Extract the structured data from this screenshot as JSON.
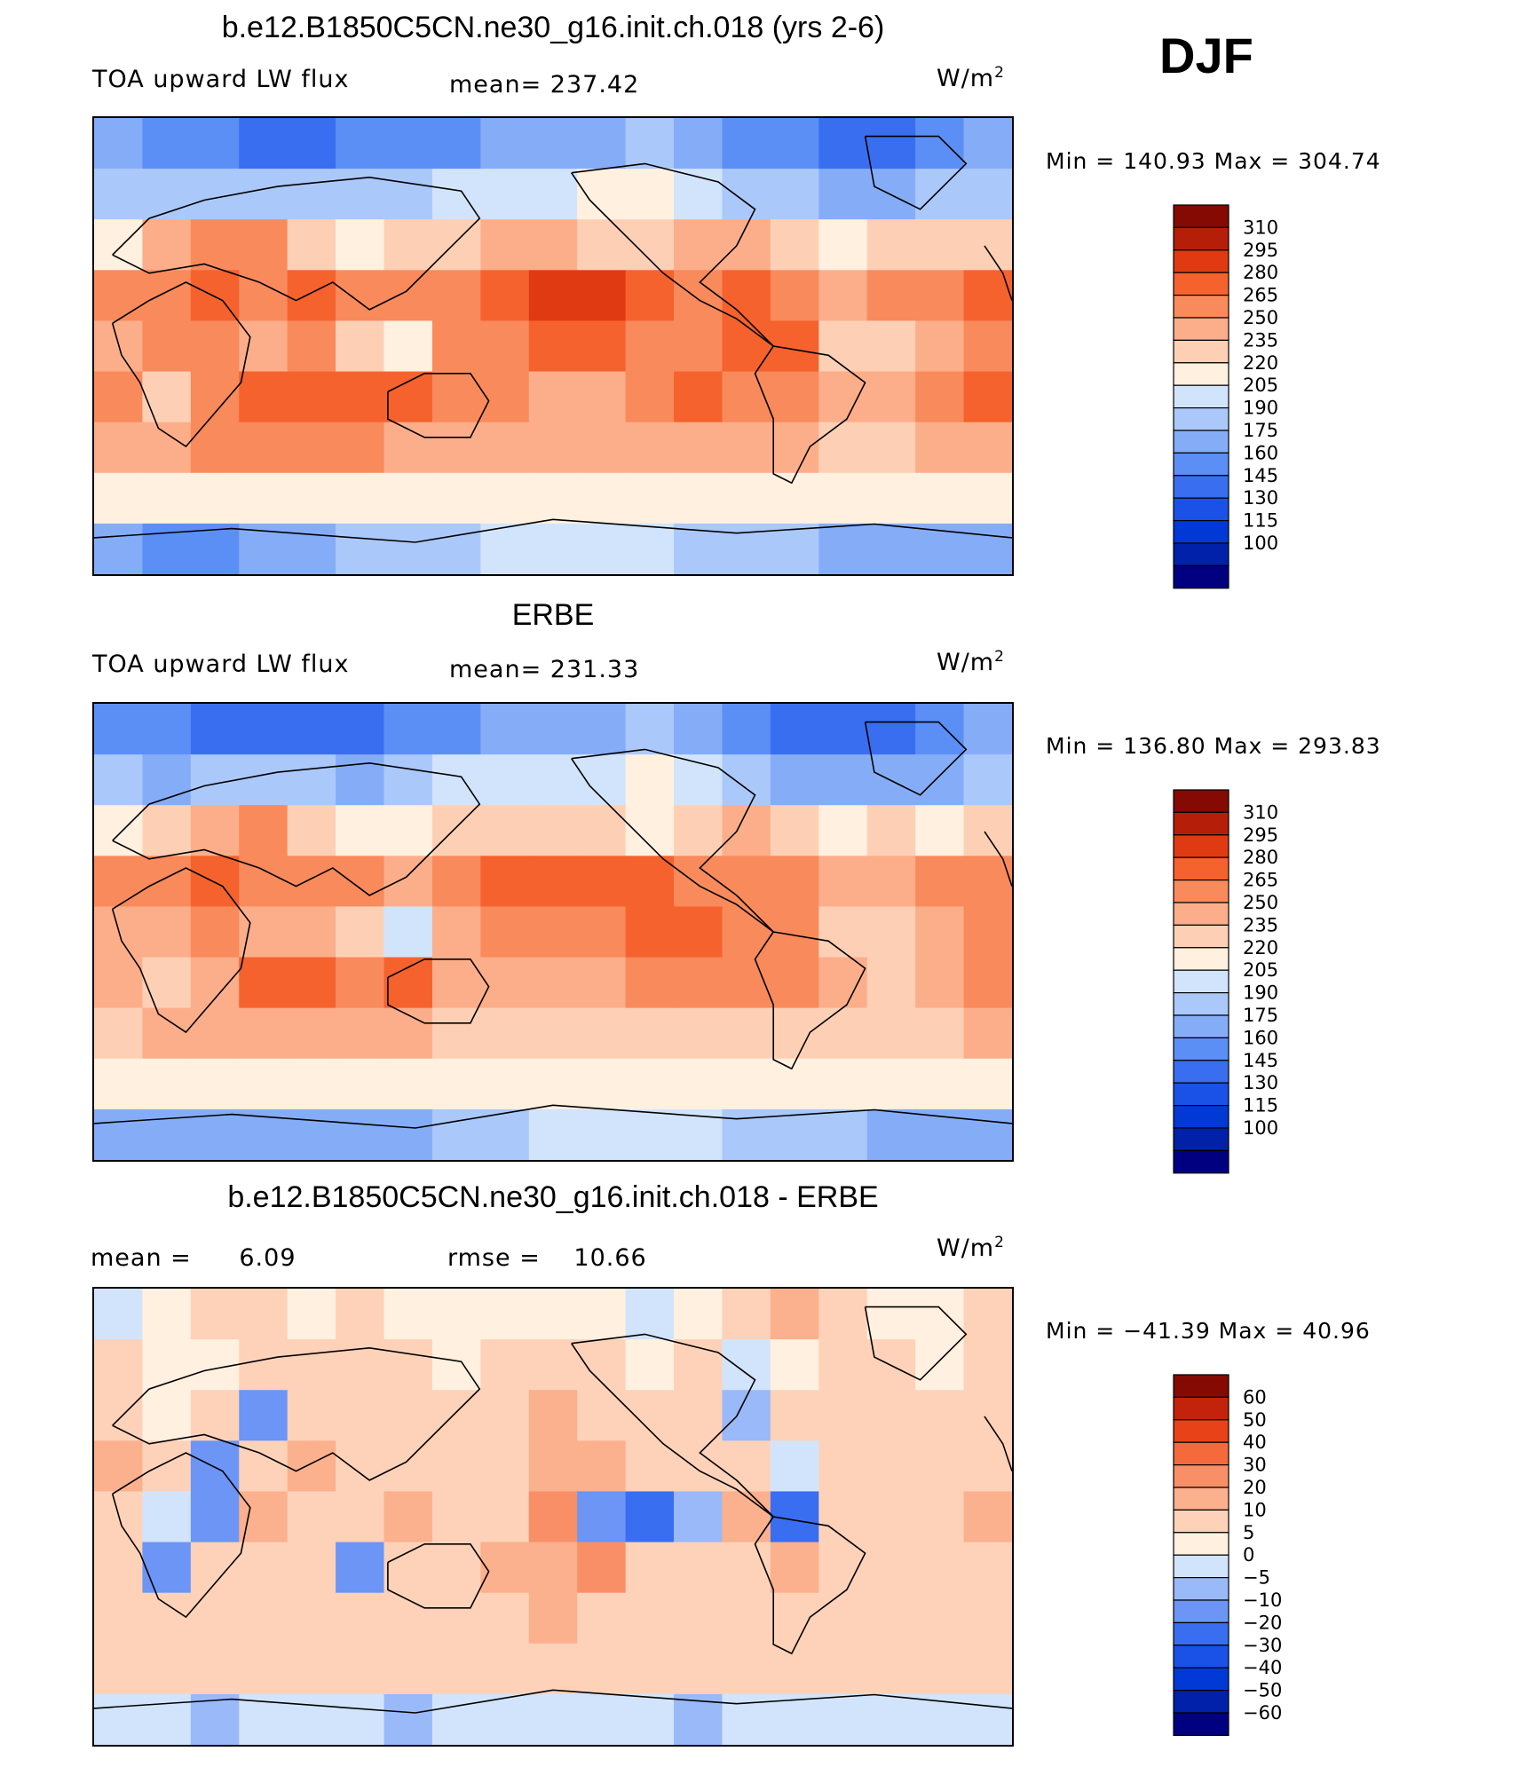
{
  "season": "DJF",
  "colors": {
    "abs_scale": [
      "#000080",
      "#0021a8",
      "#0039d6",
      "#1a52e8",
      "#3a6ef0",
      "#5c8ff5",
      "#85adf7",
      "#abc8fa",
      "#d2e4fc",
      "#fff0e0",
      "#fdd0b6",
      "#fcae8a",
      "#f98a5c",
      "#f5622e",
      "#e03a12",
      "#b51e08",
      "#850a04"
    ],
    "diff_scale": [
      "#000080",
      "#0021a8",
      "#0039d6",
      "#1a52e8",
      "#3a6ef0",
      "#6c95f5",
      "#9ab9f8",
      "#d2e4fc",
      "#fff0e0",
      "#fdd2b9",
      "#fbb08e",
      "#f98f66",
      "#f56a3c",
      "#e84218",
      "#c2230a",
      "#850a04"
    ],
    "coast": "#000000"
  },
  "panels": [
    {
      "id": "model",
      "title": "b.e12.B1850C5CN.ne30_g16.init.ch.018 (yrs 2-6)",
      "left_label": "TOA upward LW flux",
      "mid_label": "mean=",
      "mid_value": "237.42",
      "units": "W/m",
      "units_sup": "2",
      "minmax": "Min  =  140.93  Max  =  304.74"
    },
    {
      "id": "obs",
      "title": "ERBE",
      "left_label": "TOA upward LW flux",
      "mid_label": "mean=",
      "mid_value": "231.33",
      "units": "W/m",
      "units_sup": "2",
      "minmax": "Min  =  136.80  Max  =  293.83"
    },
    {
      "id": "diff",
      "title": "b.e12.B1850C5CN.ne30_g16.init.ch.018 - ERBE",
      "left_label": "mean =",
      "left_value": "6.09",
      "mid_label": "rmse =",
      "mid_value": "10.66",
      "units": "W/m",
      "units_sup": "2",
      "minmax": "Min  =  −41.39  Max  =    40.96"
    }
  ],
  "chart_data": [
    {
      "type": "heatmap",
      "title": "b.e12.B1850C5CN.ne30_g16.init.ch.018 (yrs 2-6)",
      "subtitle": "TOA upward LW flux",
      "units": "W/m2",
      "mean": 237.42,
      "min": 140.93,
      "max": 304.74,
      "colorbar_levels": [
        "310",
        "295",
        "280",
        "265",
        "250",
        "235",
        "220",
        "205",
        "190",
        "175",
        "160",
        "145",
        "130",
        "115",
        "100"
      ],
      "field": [
        [
          175,
          160,
          160,
          155,
          150,
          160,
          165,
          170,
          175,
          180,
          185,
          190,
          180,
          170,
          160,
          150,
          150,
          165,
          180
        ],
        [
          195,
          190,
          190,
          200,
          195,
          190,
          200,
          210,
          215,
          210,
          220,
          225,
          215,
          200,
          190,
          180,
          185,
          190,
          200
        ],
        [
          230,
          250,
          265,
          270,
          240,
          230,
          235,
          245,
          250,
          250,
          245,
          235,
          250,
          255,
          245,
          225,
          240,
          235,
          240
        ],
        [
          270,
          275,
          290,
          275,
          280,
          270,
          265,
          275,
          285,
          300,
          295,
          285,
          270,
          280,
          275,
          260,
          265,
          270,
          280
        ],
        [
          255,
          265,
          270,
          255,
          265,
          245,
          230,
          265,
          275,
          280,
          280,
          275,
          270,
          280,
          285,
          245,
          240,
          260,
          275
        ],
        [
          265,
          245,
          265,
          285,
          290,
          280,
          290,
          270,
          265,
          260,
          255,
          270,
          280,
          275,
          270,
          255,
          250,
          265,
          280
        ],
        [
          250,
          255,
          265,
          270,
          265,
          265,
          260,
          255,
          250,
          250,
          250,
          250,
          250,
          250,
          250,
          245,
          245,
          250,
          255
        ],
        [
          225,
          225,
          225,
          225,
          225,
          225,
          225,
          225,
          225,
          225,
          225,
          225,
          225,
          225,
          225,
          225,
          225,
          225,
          225
        ],
        [
          175,
          170,
          170,
          180,
          185,
          190,
          195,
          200,
          205,
          210,
          210,
          205,
          200,
          195,
          190,
          185,
          180,
          175,
          175
        ]
      ]
    },
    {
      "type": "heatmap",
      "title": "ERBE",
      "subtitle": "TOA upward LW flux",
      "units": "W/m2",
      "mean": 231.33,
      "min": 136.8,
      "max": 293.83,
      "colorbar_levels": [
        "310",
        "295",
        "280",
        "265",
        "250",
        "235",
        "220",
        "205",
        "190",
        "175",
        "160",
        "145",
        "130",
        "115",
        "100"
      ],
      "field": [
        [
          170,
          160,
          155,
          150,
          150,
          155,
          165,
          170,
          175,
          180,
          185,
          190,
          175,
          165,
          150,
          145,
          150,
          165,
          175
        ],
        [
          190,
          185,
          190,
          195,
          190,
          185,
          195,
          205,
          210,
          205,
          215,
          220,
          210,
          195,
          185,
          175,
          180,
          185,
          195
        ],
        [
          225,
          245,
          260,
          265,
          240,
          230,
          230,
          240,
          245,
          245,
          240,
          230,
          245,
          250,
          240,
          220,
          235,
          230,
          235
        ],
        [
          265,
          270,
          285,
          270,
          275,
          265,
          260,
          270,
          280,
          290,
          285,
          280,
          265,
          275,
          270,
          255,
          260,
          265,
          275
        ],
        [
          250,
          260,
          265,
          250,
          260,
          240,
          205,
          250,
          265,
          270,
          275,
          285,
          280,
          275,
          270,
          235,
          240,
          255,
          270
        ],
        [
          260,
          240,
          260,
          280,
          285,
          275,
          285,
          260,
          255,
          255,
          250,
          265,
          275,
          270,
          265,
          250,
          245,
          260,
          275
        ],
        [
          245,
          250,
          260,
          260,
          255,
          255,
          250,
          245,
          245,
          245,
          245,
          245,
          245,
          245,
          245,
          240,
          240,
          245,
          250
        ],
        [
          220,
          220,
          220,
          220,
          220,
          220,
          220,
          220,
          220,
          220,
          220,
          220,
          220,
          220,
          220,
          220,
          220,
          220,
          220
        ],
        [
          185,
          185,
          180,
          175,
          175,
          180,
          185,
          190,
          195,
          205,
          210,
          210,
          205,
          200,
          195,
          190,
          185,
          185,
          185
        ]
      ]
    },
    {
      "type": "heatmap",
      "title": "b.e12.B1850C5CN.ne30_g16.init.ch.018 - ERBE",
      "units": "W/m2",
      "mean": 6.09,
      "rmse": 10.66,
      "min": -41.39,
      "max": 40.96,
      "colorbar_levels": [
        "60",
        "50",
        "40",
        "30",
        "20",
        "10",
        "5",
        "0",
        "−5",
        "−10",
        "−20",
        "−30",
        "−40",
        "−50",
        "−60"
      ],
      "field": [
        [
          -3,
          2,
          5,
          5,
          3,
          5,
          4,
          2,
          3,
          2,
          4,
          -2,
          4,
          5,
          10,
          5,
          0,
          2,
          5
        ],
        [
          5,
          4,
          2,
          5,
          5,
          6,
          6,
          4,
          6,
          6,
          5,
          4,
          6,
          -5,
          4,
          5,
          6,
          4,
          5
        ],
        [
          6,
          4,
          6,
          -12,
          8,
          5,
          6,
          8,
          6,
          10,
          6,
          5,
          5,
          -10,
          5,
          6,
          6,
          6,
          6
        ],
        [
          12,
          6,
          -12,
          5,
          10,
          5,
          8,
          5,
          8,
          10,
          15,
          5,
          5,
          8,
          -5,
          5,
          6,
          6,
          6
        ],
        [
          8,
          -5,
          -15,
          10,
          8,
          6,
          10,
          6,
          8,
          25,
          -20,
          -30,
          -10,
          15,
          -25,
          6,
          5,
          8,
          10
        ],
        [
          6,
          -20,
          5,
          8,
          6,
          -15,
          8,
          6,
          10,
          15,
          20,
          5,
          6,
          5,
          10,
          5,
          6,
          6,
          6
        ],
        [
          6,
          6,
          8,
          6,
          8,
          6,
          6,
          6,
          8,
          10,
          8,
          6,
          6,
          6,
          8,
          6,
          6,
          6,
          6
        ],
        [
          5,
          5,
          5,
          5,
          5,
          5,
          5,
          5,
          5,
          5,
          5,
          5,
          5,
          5,
          5,
          5,
          5,
          5,
          5
        ],
        [
          -5,
          -5,
          -8,
          -5,
          -5,
          -5,
          -8,
          -5,
          -5,
          -5,
          -5,
          -5,
          -8,
          -5,
          -5,
          -5,
          -5,
          -5,
          -5
        ]
      ]
    }
  ]
}
